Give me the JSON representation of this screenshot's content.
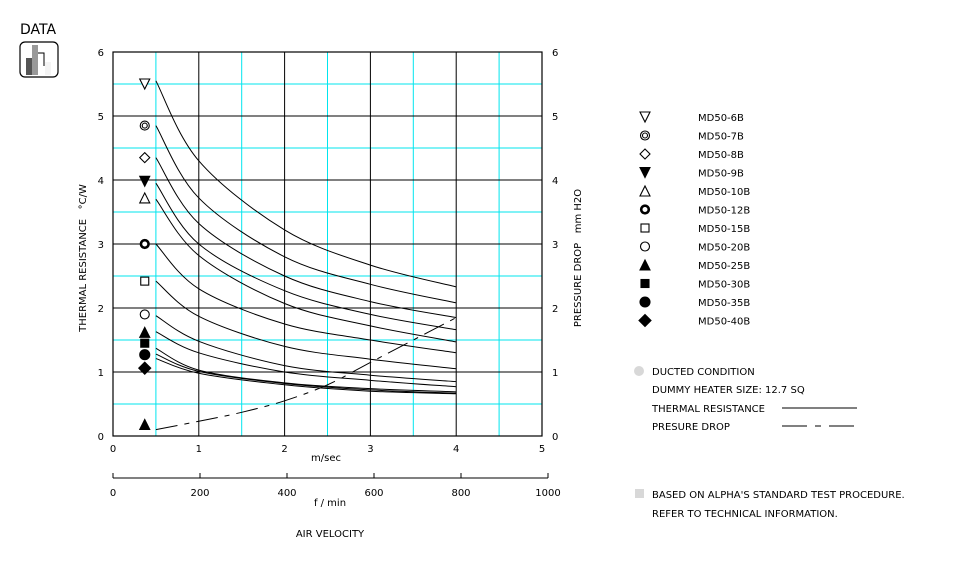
{
  "logo": {
    "label": "DATA"
  },
  "colors": {
    "grid_major": "#000000",
    "grid_minor": "#00e5ee",
    "line": "#000000",
    "note_bullet": "#d8d8d8"
  },
  "chart_data": {
    "type": "line",
    "grid": true,
    "legend_placement": "right",
    "xlabel": "m/sec",
    "xlim": [
      0,
      5
    ],
    "xticks": [
      "0",
      "1",
      "2",
      "3",
      "4",
      "5"
    ],
    "x2label": "f / min",
    "x2lim": [
      0,
      1000
    ],
    "x2ticks": [
      "0",
      "200",
      "400",
      "600",
      "800",
      "1000"
    ],
    "xtitle": "AIR VELOCITY",
    "ylabel": "THERMAL RESISTANCE   °C/W",
    "ylim": [
      0,
      6
    ],
    "yticks": [
      "0",
      "1",
      "2",
      "3",
      "4",
      "5",
      "6"
    ],
    "y2label": "PRESSURE DROP   mm H2O",
    "y2lim": [
      0,
      6
    ],
    "y2ticks": [
      "0",
      "1",
      "2",
      "3",
      "4",
      "5",
      "6"
    ],
    "x": [
      0.5,
      1,
      2,
      3,
      4
    ],
    "series": [
      {
        "name": "MD50-6B",
        "marker": "triangle-down-open",
        "marker_y": 5.5,
        "values": [
          5.55,
          4.3,
          3.22,
          2.67,
          2.33
        ]
      },
      {
        "name": "MD50-7B",
        "marker": "double-circle",
        "marker_y": 4.85,
        "values": [
          4.85,
          3.72,
          2.8,
          2.37,
          2.08
        ]
      },
      {
        "name": "MD50-8B",
        "marker": "diamond-open",
        "marker_y": 4.35,
        "values": [
          4.35,
          3.32,
          2.5,
          2.1,
          1.85
        ]
      },
      {
        "name": "MD50-9B",
        "marker": "triangle-down-filled",
        "marker_y": 3.98,
        "values": [
          3.95,
          3.0,
          2.27,
          1.9,
          1.66
        ]
      },
      {
        "name": "MD50-10B",
        "marker": "triangle-up-open",
        "marker_y": 3.72,
        "values": [
          3.7,
          2.82,
          2.07,
          1.72,
          1.47
        ]
      },
      {
        "name": "MD50-12B",
        "marker": "thick-ring",
        "marker_y": 3.0,
        "values": [
          3.0,
          2.3,
          1.75,
          1.5,
          1.3
        ]
      },
      {
        "name": "MD50-15B",
        "marker": "square-open",
        "marker_y": 2.42,
        "values": [
          2.42,
          1.87,
          1.4,
          1.2,
          1.05
        ]
      },
      {
        "name": "MD50-20B",
        "marker": "circle-open",
        "marker_y": 1.9,
        "values": [
          1.88,
          1.48,
          1.1,
          0.95,
          0.85
        ]
      },
      {
        "name": "MD50-25B",
        "marker": "triangle-up-filled",
        "marker_y": 1.62,
        "values": [
          1.63,
          1.3,
          1.0,
          0.87,
          0.77
        ]
      },
      {
        "name": "MD50-30B",
        "marker": "square-filled",
        "marker_y": 1.45,
        "values": [
          1.37,
          1.03,
          0.83,
          0.74,
          0.69
        ]
      },
      {
        "name": "MD50-35B",
        "marker": "circle-filled",
        "marker_y": 1.27,
        "values": [
          1.28,
          1.01,
          0.82,
          0.72,
          0.67
        ]
      },
      {
        "name": "MD50-40B",
        "marker": "diamond-filled",
        "marker_y": 1.06,
        "values": [
          1.21,
          0.98,
          0.8,
          0.7,
          0.66
        ]
      }
    ],
    "pressure_drop": {
      "marker": "triangle-up-filled",
      "marker_y": 0.18,
      "x": [
        0.5,
        1,
        1.5,
        2,
        2.5,
        3,
        3.5,
        4
      ],
      "values": [
        0.1,
        0.23,
        0.37,
        0.55,
        0.8,
        1.15,
        1.5,
        1.85
      ]
    },
    "marker_x": 0.37
  },
  "notes": {
    "condition": "DUCTED CONDITION",
    "heater": "DUMMY HEATER SIZE: 12.7 SQ",
    "thermal_label": "THERMAL RESISTANCE",
    "pressure_label": "PRESURE DROP",
    "footer_line1": "BASED ON ALPHA'S STANDARD TEST PROCEDURE.",
    "footer_line2": "REFER TO TECHNICAL INFORMATION."
  }
}
